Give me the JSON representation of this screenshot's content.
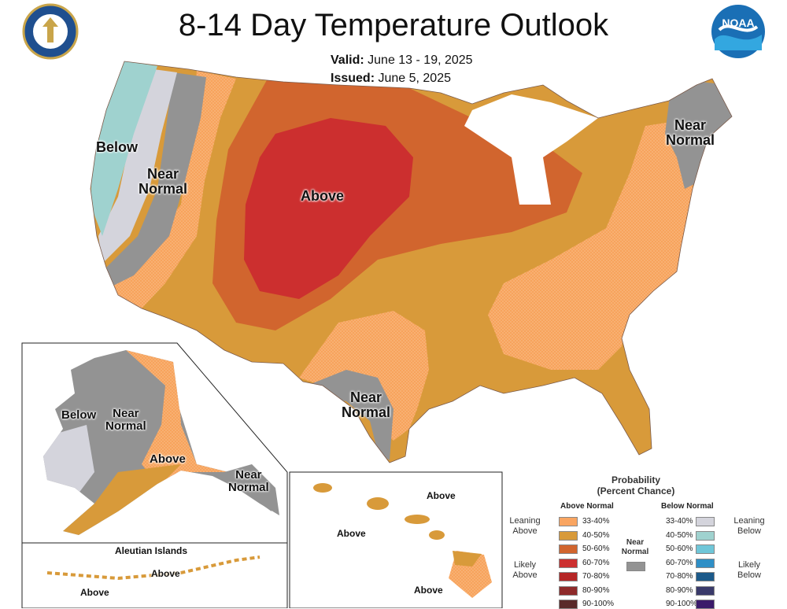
{
  "header": {
    "title": "8-14 Day Temperature Outlook",
    "valid_label": "Valid:",
    "valid_value": "June 13 - 19, 2025",
    "issued_label": "Issued:",
    "issued_value": "June 5, 2025"
  },
  "logos": {
    "commerce": "department-of-commerce-seal",
    "noaa": "NOAA"
  },
  "labels": {
    "conus_below": "Below",
    "conus_near_west": "Near\nNormal",
    "conus_above": "Above",
    "conus_near_ne": "Near\nNormal",
    "conus_near_tx": "Near\nNormal",
    "ak_below": "Below",
    "ak_near": "Near\nNormal",
    "ak_above": "Above",
    "ak_near_se": "Near\nNormal",
    "aleutian_title": "Aleutian Islands",
    "aleutian_above1": "Above",
    "aleutian_above2": "Above",
    "hi_above1": "Above",
    "hi_above2": "Above",
    "hi_above3": "Above"
  },
  "legend": {
    "title": "Probability\n(Percent Chance)",
    "above_header": "Above Normal",
    "below_header": "Below Normal",
    "near_header": "Near\nNormal",
    "leaning_above": "Leaning\nAbove",
    "likely_above": "Likely\nAbove",
    "leaning_below": "Leaning\nBelow",
    "likely_below": "Likely\nBelow",
    "above_rows": [
      {
        "label": "33-40%",
        "color": "#f9a561"
      },
      {
        "label": "40-50%",
        "color": "#d89a3a"
      },
      {
        "label": "50-60%",
        "color": "#d1652e"
      },
      {
        "label": "60-70%",
        "color": "#cc2f2f"
      },
      {
        "label": "70-80%",
        "color": "#b52626"
      },
      {
        "label": "80-90%",
        "color": "#8e2a2a"
      },
      {
        "label": "90-100%",
        "color": "#5a2a2a"
      }
    ],
    "below_rows": [
      {
        "label": "33-40%",
        "color": "#d4d4dc"
      },
      {
        "label": "40-50%",
        "color": "#9fd2cf"
      },
      {
        "label": "50-60%",
        "color": "#6fc6d8"
      },
      {
        "label": "60-70%",
        "color": "#2f8fc6"
      },
      {
        "label": "70-80%",
        "color": "#1c5a8a"
      },
      {
        "label": "80-90%",
        "color": "#3a3a6a"
      },
      {
        "label": "90-100%",
        "color": "#3b1a6a"
      }
    ],
    "near_color": "#939393"
  }
}
